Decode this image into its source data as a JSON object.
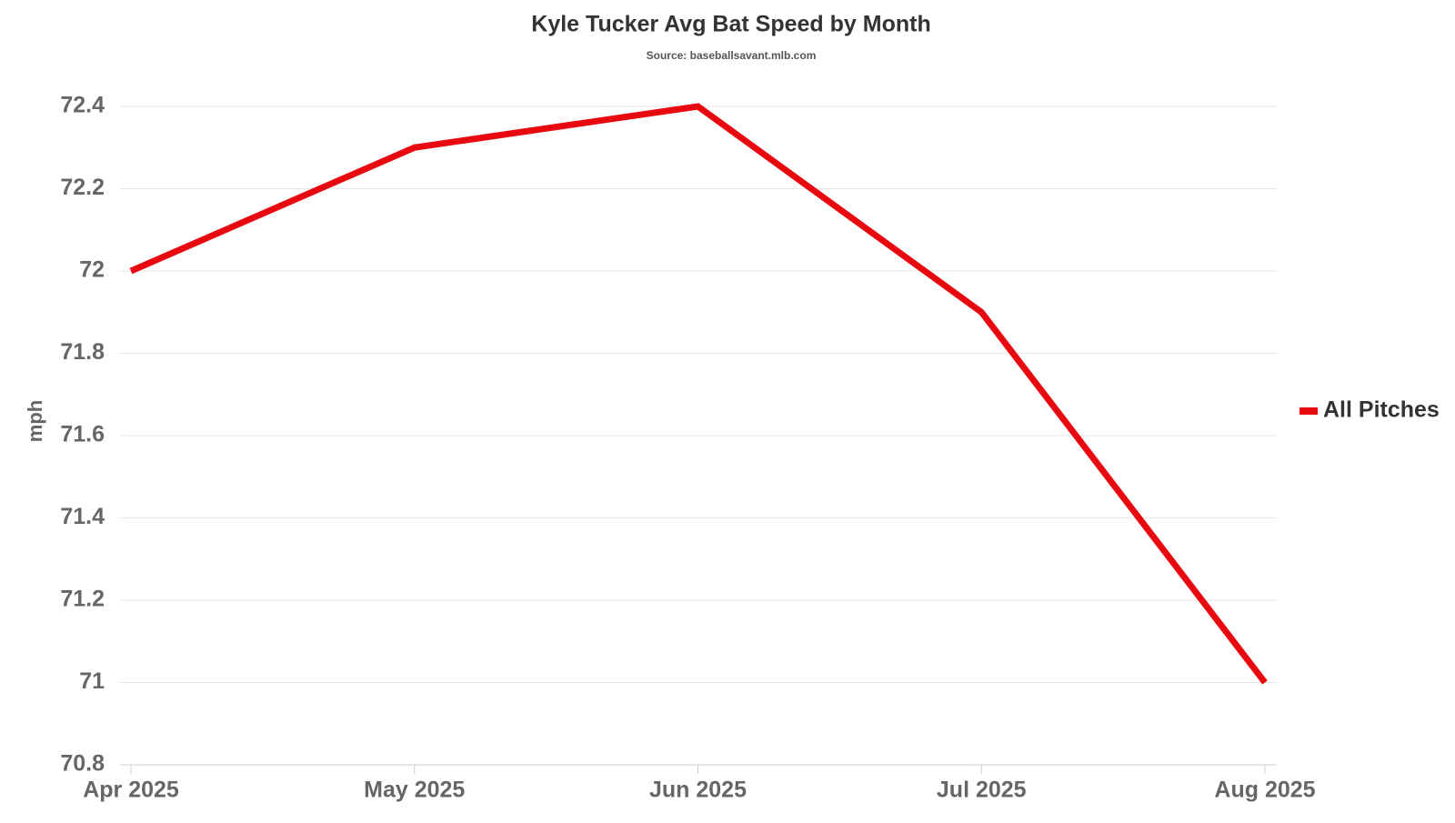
{
  "chart_data": {
    "type": "line",
    "title": "Kyle Tucker Avg Bat Speed by Month",
    "subtitle": "Source: baseballsavant.mlb.com",
    "y_label": "mph",
    "categories": [
      "Apr 2025",
      "May 2025",
      "Jun 2025",
      "Jul 2025",
      "Aug 2025"
    ],
    "series": [
      {
        "name": "All Pitches",
        "color": "#e8080f",
        "values": [
          72.0,
          72.3,
          72.4,
          71.9,
          71.0
        ]
      }
    ],
    "ylim": [
      70.8,
      72.4
    ],
    "yticks": [
      70.8,
      71,
      71.2,
      71.4,
      71.6,
      71.8,
      72,
      72.2,
      72.4
    ],
    "grid": true,
    "legend": "right"
  }
}
